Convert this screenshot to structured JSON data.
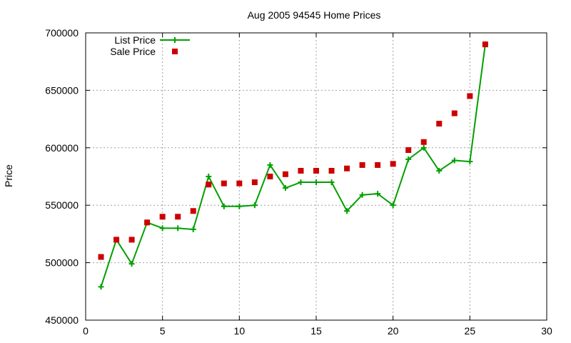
{
  "chart_data": {
    "type": "line",
    "title": "Aug 2005 94545 Home Prices",
    "xlabel": "",
    "ylabel": "Price",
    "xlim": [
      0,
      30
    ],
    "ylim": [
      450000,
      700000
    ],
    "xticks": [
      0,
      5,
      10,
      15,
      20,
      25,
      30
    ],
    "yticks": [
      450000,
      500000,
      550000,
      600000,
      650000,
      700000
    ],
    "grid": true,
    "legend_position": "top-left",
    "series": [
      {
        "name": "List Price",
        "style": "lines+points",
        "marker": "plus",
        "color": "#00a000",
        "x": [
          1,
          2,
          3,
          4,
          5,
          6,
          7,
          8,
          9,
          10,
          11,
          12,
          13,
          14,
          15,
          16,
          17,
          18,
          19,
          20,
          21,
          22,
          23,
          24,
          25,
          26
        ],
        "y": [
          479000,
          520000,
          499000,
          535000,
          530000,
          530000,
          529000,
          575000,
          549000,
          549000,
          550000,
          585000,
          565000,
          570000,
          570000,
          570000,
          545000,
          559000,
          560000,
          550000,
          590000,
          600000,
          580000,
          589000,
          588000,
          690000
        ]
      },
      {
        "name": "Sale Price",
        "style": "points",
        "marker": "square",
        "color": "#cc0000",
        "x": [
          1,
          2,
          3,
          4,
          5,
          6,
          7,
          8,
          9,
          10,
          11,
          12,
          13,
          14,
          15,
          16,
          17,
          18,
          19,
          20,
          21,
          22,
          23,
          24,
          25,
          26
        ],
        "y": [
          505000,
          520000,
          520000,
          535000,
          540000,
          540000,
          545000,
          568000,
          569000,
          569000,
          570000,
          575000,
          577000,
          580000,
          580000,
          580000,
          582000,
          585000,
          585000,
          586000,
          598000,
          605000,
          621000,
          630000,
          645000,
          690000
        ]
      }
    ]
  }
}
